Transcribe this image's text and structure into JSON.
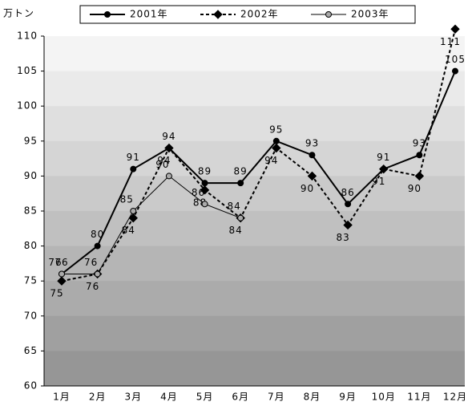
{
  "chart_data": {
    "type": "line",
    "y_unit": "万トン",
    "categories": [
      "1月",
      "2月",
      "3月",
      "4月",
      "5月",
      "6月",
      "7月",
      "8月",
      "9月",
      "10月",
      "11月",
      "12月"
    ],
    "series": [
      {
        "name": "2001年",
        "color": "#000000",
        "marker": "circle",
        "marker_fill": "#000000",
        "dash": false,
        "line_width": 2,
        "values": [
          76,
          80,
          91,
          94,
          89,
          89,
          95,
          93,
          86,
          91,
          93,
          105
        ]
      },
      {
        "name": "2002年",
        "color": "#000000",
        "marker": "diamond",
        "marker_fill": "#000000",
        "dash": true,
        "line_width": 2,
        "values": [
          75,
          76,
          84,
          94,
          88,
          84,
          94,
          90,
          83,
          91,
          90,
          111
        ]
      },
      {
        "name": "2003年",
        "color": "#000000",
        "marker": "circle",
        "marker_fill": "#aaaaaa",
        "dash": false,
        "line_width": 1,
        "values": [
          76,
          76,
          85,
          90,
          86,
          84,
          null,
          null,
          null,
          null,
          null,
          null
        ]
      }
    ],
    "ylim": [
      60,
      110
    ],
    "yticks": [
      60,
      65,
      70,
      75,
      80,
      85,
      90,
      95,
      100,
      105,
      110
    ],
    "legend": "top"
  }
}
